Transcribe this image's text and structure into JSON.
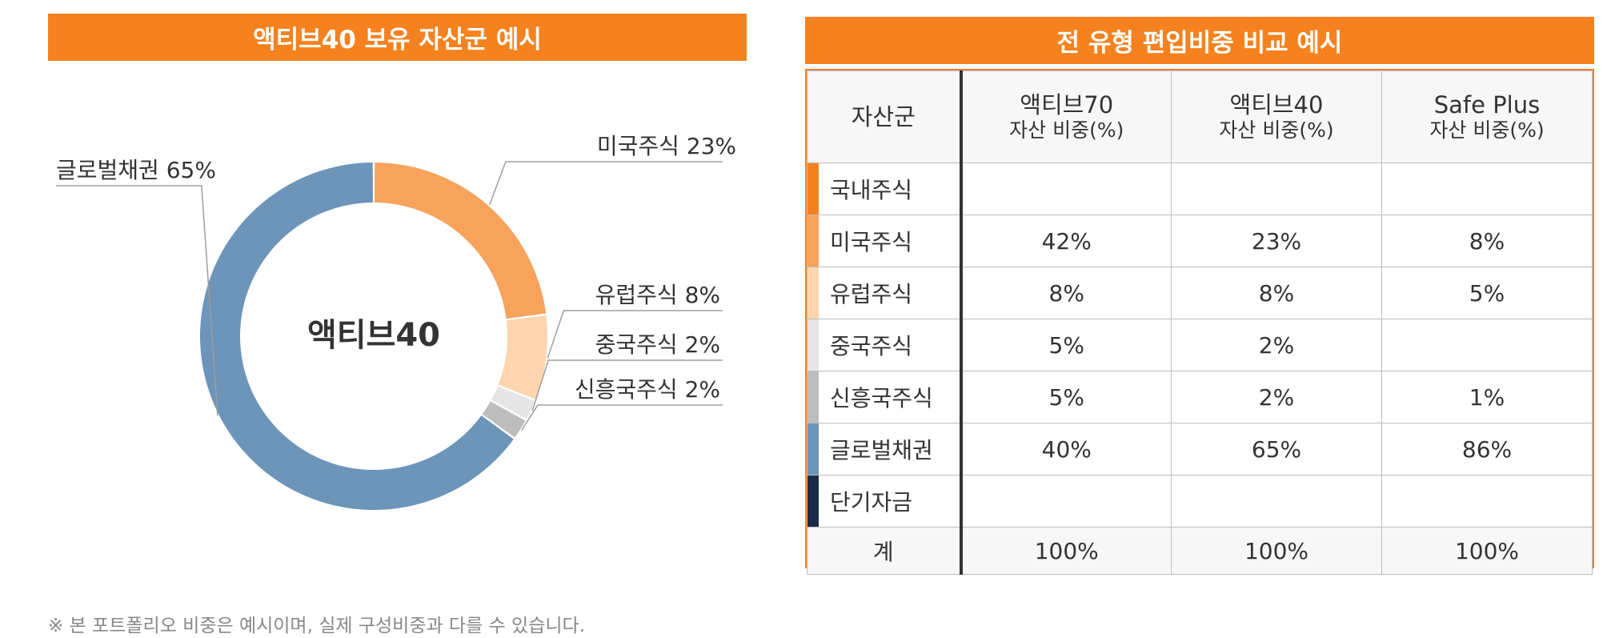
{
  "left_panel": {
    "title": "액티브40 보유 자산군 예시"
  },
  "right_panel": {
    "title": "전 유형 편입비중 비교 예시"
  },
  "chart_data": {
    "type": "pie",
    "title": "액티브40 보유 자산군 예시",
    "center_label": "액티브40",
    "slices": [
      {
        "name": "미국주식",
        "value": 23,
        "label": "미국주식 23%",
        "color": "#f7a35c"
      },
      {
        "name": "유럽주식",
        "value": 8,
        "label": "유럽주식 8%",
        "color": "#fdd5ae"
      },
      {
        "name": "중국주식",
        "value": 2,
        "label": "중국주식 2%",
        "color": "#e6e6e6"
      },
      {
        "name": "신흥국주식",
        "value": 2,
        "label": "신흥국주식 2%",
        "color": "#bdbdbd"
      },
      {
        "name": "글로벌채권",
        "value": 65,
        "label": "글로벌채권 65%",
        "color": "#6d95ba"
      }
    ]
  },
  "table": {
    "header": {
      "col0": "자산군",
      "columns": [
        {
          "name": "액티브70",
          "sub": "자산 비중(%)"
        },
        {
          "name": "액티브40",
          "sub": "자산 비중(%)"
        },
        {
          "name": "Safe Plus",
          "sub": "자산 비중(%)"
        }
      ]
    },
    "rows": [
      {
        "label": "국내주식",
        "color": "#f5821f",
        "values": [
          "",
          "",
          ""
        ]
      },
      {
        "label": "미국주식",
        "color": "#f7a35c",
        "values": [
          "42%",
          "23%",
          "8%"
        ]
      },
      {
        "label": "유럽주식",
        "color": "#fdd5ae",
        "values": [
          "8%",
          "8%",
          "5%"
        ]
      },
      {
        "label": "중국주식",
        "color": "#e6e6e6",
        "values": [
          "5%",
          "2%",
          ""
        ]
      },
      {
        "label": "신흥국주식",
        "color": "#bdbdbd",
        "values": [
          "5%",
          "2%",
          "1%"
        ]
      },
      {
        "label": "글로벌채권",
        "color": "#6d95ba",
        "values": [
          "40%",
          "65%",
          "86%"
        ]
      },
      {
        "label": "단기자금",
        "color": "#1c2a4a",
        "values": [
          "",
          "",
          ""
        ]
      }
    ],
    "total": {
      "label": "계",
      "values": [
        "100%",
        "100%",
        "100%"
      ]
    }
  },
  "footnote": "※ 본 포트폴리오 비중은 예시이며, 실제 구성비중과 다를 수 있습니다."
}
